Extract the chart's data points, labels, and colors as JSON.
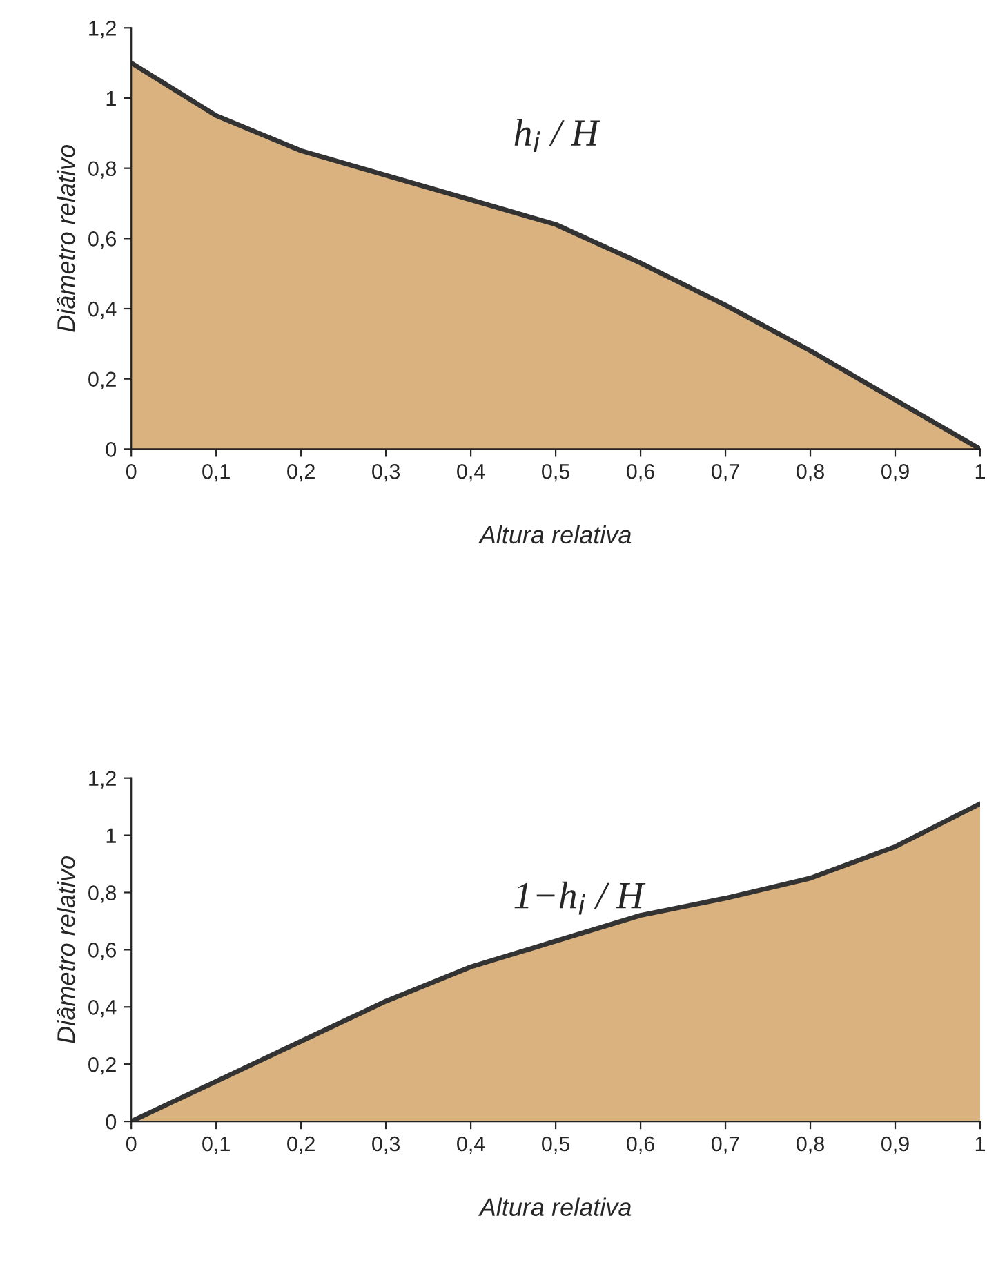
{
  "chart_data": [
    {
      "type": "area",
      "xlabel": "Altura relativa",
      "ylabel": "Diâmetro relativo",
      "annotations": [
        "h$_{i}$ / H"
      ],
      "x": [
        0,
        0.1,
        0.2,
        0.3,
        0.4,
        0.5,
        0.6,
        0.7,
        0.8,
        0.9,
        1
      ],
      "series": [
        {
          "color": "#d9b27f",
          "values": [
            1.1,
            0.95,
            0.85,
            0.78,
            0.71,
            0.64,
            0.53,
            0.41,
            0.28,
            0.14,
            0
          ]
        }
      ],
      "xlim": [
        0,
        1
      ],
      "ylim": [
        0,
        1.2
      ],
      "xticks": [
        0,
        {
          "value": 0.1,
          "label": "0,1"
        },
        {
          "value": 0.2,
          "label": "0,2"
        },
        {
          "value": 0.3,
          "label": "0,3"
        },
        {
          "value": 0.4,
          "label": "0,4"
        },
        {
          "value": 0.5,
          "label": "0,5"
        },
        {
          "value": 0.6,
          "label": "0,6"
        },
        {
          "value": 0.7,
          "label": "0,7"
        },
        {
          "value": 0.8,
          "label": "0,8"
        },
        {
          "value": 0.9,
          "label": "0,9"
        },
        1
      ],
      "yticks": [
        0,
        {
          "value": 0.2,
          "label": "0,2"
        },
        {
          "value": 0.4,
          "label": "0,4"
        },
        {
          "value": 0.6,
          "label": "0,6"
        },
        {
          "value": 0.8,
          "label": "0,8"
        },
        1,
        {
          "value": 1.2,
          "label": "1,2"
        }
      ],
      "grid": false,
      "legend": false
    },
    {
      "type": "area",
      "xlabel": "Altura relativa",
      "ylabel": "Diâmetro relativo",
      "annotations": [
        "1−h$_{i}$ / H"
      ],
      "x": [
        0,
        0.1,
        0.2,
        0.3,
        0.4,
        0.5,
        0.6,
        0.7,
        0.8,
        0.9,
        1
      ],
      "series": [
        {
          "color": "#d9b27f",
          "values": [
            0,
            0.14,
            0.28,
            0.42,
            0.54,
            0.63,
            0.72,
            0.78,
            0.85,
            0.96,
            1.11
          ]
        }
      ],
      "xlim": [
        0,
        1
      ],
      "ylim": [
        0,
        1.2
      ],
      "xticks": [
        0,
        {
          "value": 0.1,
          "label": "0,1"
        },
        {
          "value": 0.2,
          "label": "0,2"
        },
        {
          "value": 0.3,
          "label": "0,3"
        },
        {
          "value": 0.4,
          "label": "0,4"
        },
        {
          "value": 0.5,
          "label": "0,5"
        },
        {
          "value": 0.6,
          "label": "0,6"
        },
        {
          "value": 0.7,
          "label": "0,7"
        },
        {
          "value": 0.8,
          "label": "0,8"
        },
        {
          "value": 0.9,
          "label": "0,9"
        },
        1
      ],
      "yticks": [
        0,
        {
          "value": 0.2,
          "label": "0,2"
        },
        {
          "value": 0.4,
          "label": "0,4"
        },
        {
          "value": 0.6,
          "label": "0,6"
        },
        {
          "value": 0.8,
          "label": "0,8"
        },
        1,
        {
          "value": 1.2,
          "label": "1,2"
        }
      ],
      "grid": false,
      "legend": false
    }
  ]
}
